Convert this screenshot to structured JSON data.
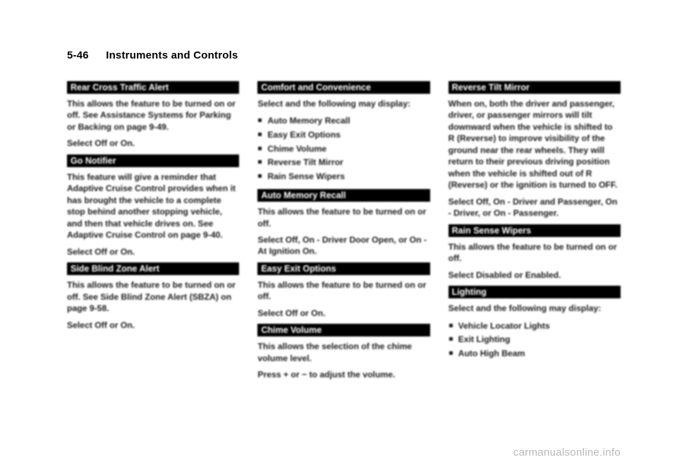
{
  "header": {
    "page_no": "5-46",
    "title": "Instruments and Controls"
  },
  "col1": {
    "s1": {
      "h": "Rear Cross Traffic Alert",
      "p1": "This allows the feature to be turned on or off. See Assistance Systems for Parking or Backing on page 9-49.",
      "p2": "Select Off or On."
    },
    "s2": {
      "h": "Go Notifier",
      "p1": "This feature will give a reminder that Adaptive Cruise Control provides when it has brought the vehicle to a complete stop behind another stopping vehicle, and then that vehicle drives on. See Adaptive Cruise Control on page 9-40.",
      "p2": "Select Off or On."
    },
    "s3": {
      "h": "Side Blind Zone Alert",
      "p1": "This allows the feature to be turned on or off. See Side Blind Zone Alert (SBZA) on page 9-58.",
      "p2": "Select Off or On."
    }
  },
  "col2": {
    "s1": {
      "h": "Comfort and Convenience",
      "p1": "Select and the following may display:",
      "items": [
        "Auto Memory Recall",
        "Easy Exit Options",
        "Chime Volume",
        "Reverse Tilt Mirror",
        "Rain Sense Wipers"
      ]
    },
    "s2": {
      "h": "Auto Memory Recall",
      "p1": "This allows the feature to be turned on or off.",
      "p2": "Select Off, On - Driver Door Open, or On - At Ignition On."
    },
    "s3": {
      "h": "Easy Exit Options",
      "p1": "This allows the feature to be turned on or off.",
      "p2": "Select Off or On."
    },
    "s4": {
      "h": "Chime Volume",
      "p1": "This allows the selection of the chime volume level.",
      "p2": "Press + or − to adjust the volume."
    }
  },
  "col3": {
    "s1": {
      "h": "Reverse Tilt Mirror",
      "p1": "When on, both the driver and passenger, driver, or passenger mirrors will tilt downward when the vehicle is shifted to R (Reverse) to improve visibility of the ground near the rear wheels. They will return to their previous driving position when the vehicle is shifted out of R (Reverse) or the ignition is turned to OFF.",
      "p2": "Select Off, On - Driver and Passenger, On - Driver, or On - Passenger."
    },
    "s2": {
      "h": "Rain Sense Wipers",
      "p1": "This allows the feature to be turned on or off.",
      "p2": "Select Disabled or Enabled."
    },
    "s3": {
      "h": "Lighting",
      "p1": "Select and the following may display:",
      "items": [
        "Vehicle Locator Lights",
        "Exit Lighting",
        "Auto High Beam"
      ]
    }
  },
  "watermark": "carmanualsonline.info"
}
